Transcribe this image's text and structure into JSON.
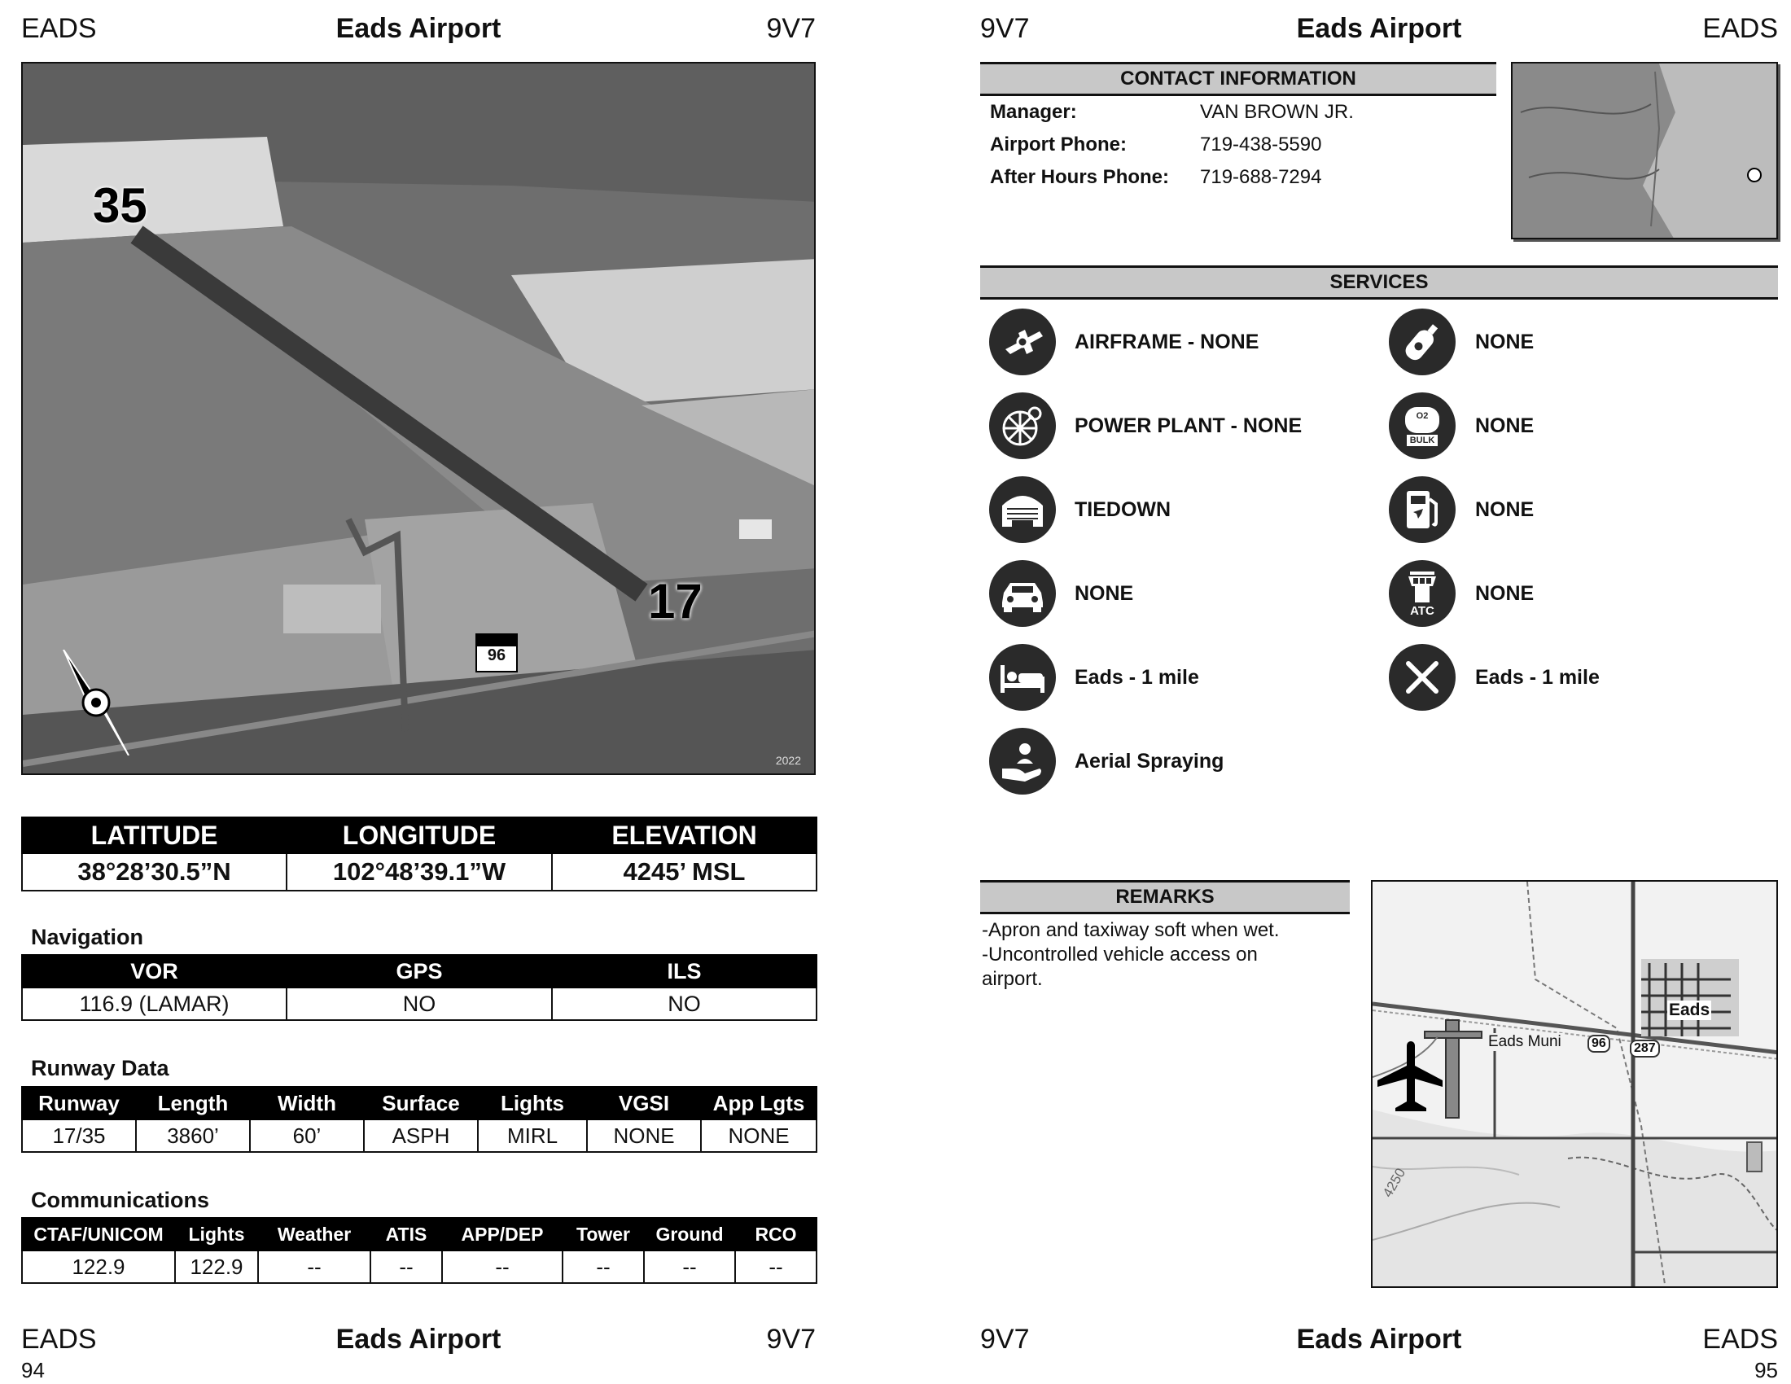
{
  "left_page": {
    "header": {
      "left": "EADS",
      "center": "Eads Airport",
      "right": "9V7"
    },
    "photo": {
      "runway_label_north": "35",
      "runway_label_south": "17",
      "highway_shield": "96",
      "year": "2022"
    },
    "position": {
      "headers": [
        "LATITUDE",
        "LONGITUDE",
        "ELEVATION"
      ],
      "values": [
        "38°28’30.5”N",
        "102°48’39.1”W",
        "4245’ MSL"
      ]
    },
    "navigation": {
      "title": "Navigation",
      "headers": [
        "VOR",
        "GPS",
        "ILS"
      ],
      "values": [
        "116.9 (LAMAR)",
        "NO",
        "NO"
      ]
    },
    "runway": {
      "title": "Runway Data",
      "headers": [
        "Runway",
        "Length",
        "Width",
        "Surface",
        "Lights",
        "VGSI",
        "App Lgts"
      ],
      "values": [
        "17/35",
        "3860’",
        "60’",
        "ASPH",
        "MIRL",
        "NONE",
        "NONE"
      ]
    },
    "comms": {
      "title": "Communications",
      "headers": [
        "CTAF/UNICOM",
        "Lights",
        "Weather",
        "ATIS",
        "APP/DEP",
        "Tower",
        "Ground",
        "RCO"
      ],
      "values": [
        "122.9",
        "122.9",
        "--",
        "--",
        "--",
        "--",
        "--",
        "--"
      ]
    },
    "footer": {
      "left": "EADS",
      "center": "Eads Airport",
      "right": "9V7",
      "page": "94"
    }
  },
  "right_page": {
    "header": {
      "left": "9V7",
      "center": "Eads Airport",
      "right": "EADS"
    },
    "contact": {
      "title": "CONTACT INFORMATION",
      "rows": [
        {
          "label": "Manager:",
          "value": "VAN BROWN JR."
        },
        {
          "label": "Airport Phone:",
          "value": "719-438-5590"
        },
        {
          "label": "After Hours Phone:",
          "value": "719-688-7294"
        }
      ]
    },
    "services": {
      "title": "SERVICES",
      "left": [
        {
          "icon": "airframe-icon",
          "text": "AIRFRAME - NONE"
        },
        {
          "icon": "power-plant-icon",
          "text": "POWER PLANT - NONE"
        },
        {
          "icon": "hangar-icon",
          "text": "TIEDOWN"
        },
        {
          "icon": "car-icon",
          "text": "NONE"
        },
        {
          "icon": "bed-icon",
          "text": "Eads - 1 mile"
        },
        {
          "icon": "hand-person-icon",
          "text": "Aerial Spraying"
        }
      ],
      "right": [
        {
          "icon": "oxygen-bottle-icon",
          "text": "NONE"
        },
        {
          "icon": "bulk-oxygen-icon",
          "text": "NONE",
          "badge": "BULK",
          "badge_top": "O2"
        },
        {
          "icon": "fuel-pump-icon",
          "text": "NONE"
        },
        {
          "icon": "atc-tower-icon",
          "text": "NONE",
          "badge": "ATC"
        },
        {
          "icon": "fork-knife-icon",
          "text": "Eads - 1 mile"
        }
      ]
    },
    "remarks": {
      "title": "REMARKS",
      "lines": [
        "-Apron and taxiway soft when wet.",
        "-Uncontrolled vehicle access on",
        "airport."
      ]
    },
    "vicinity_map": {
      "town": "Eads",
      "airport": "Eads Muni",
      "route_a": "96",
      "route_b": "287",
      "contour": "4250"
    },
    "footer": {
      "left": "9V7",
      "center": "Eads Airport",
      "right": "EADS",
      "page": "95"
    }
  }
}
